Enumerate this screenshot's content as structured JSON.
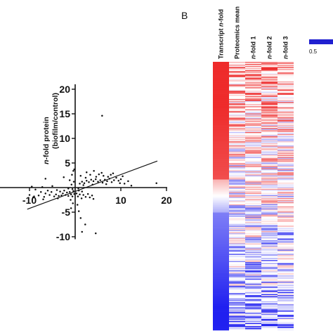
{
  "panel_b_label": "B",
  "legend": {
    "value_label": "0.5",
    "color": "#2020d0"
  },
  "colors": {
    "high": "#ee2b2b",
    "mid": "#ffffff",
    "low": "#2020f0",
    "points": "#111111"
  },
  "chart_data": [
    {
      "type": "scatter",
      "title": "",
      "xlabel": "",
      "ylabel_prefix": "n",
      "ylabel_line1": "-fold protein",
      "ylabel_line2": "(biofilm/control)",
      "xlim": [
        -10.5,
        20
      ],
      "ylim": [
        -10.5,
        21
      ],
      "x_ticks": [
        -10,
        10,
        20
      ],
      "y_ticks": [
        -10,
        -5,
        5,
        10,
        15,
        20
      ],
      "x_tick_labels": [
        "-10",
        "10",
        "20"
      ],
      "y_tick_labels": [
        "-10",
        "-5",
        "5",
        "10",
        "15",
        "20"
      ],
      "regression_line": {
        "x": [
          -10.5,
          18
        ],
        "y": [
          -4.4,
          5.4
        ]
      },
      "points": [
        [
          -10,
          -1.5
        ],
        [
          -9.5,
          0.2
        ],
        [
          -9,
          -1.8
        ],
        [
          -8.7,
          -0.4
        ],
        [
          -8,
          -1.6
        ],
        [
          -7.5,
          -0.9
        ],
        [
          -7.2,
          0.1
        ],
        [
          -6.8,
          -1.9
        ],
        [
          -6.5,
          -1.2
        ],
        [
          -6,
          -0.6
        ],
        [
          -5.6,
          -1.5
        ],
        [
          -5.2,
          -0.9
        ],
        [
          -5,
          0.3
        ],
        [
          -4.6,
          -1.8
        ],
        [
          -4.2,
          -1.4
        ],
        [
          -4,
          -0.5
        ],
        [
          -3.6,
          -1.7
        ],
        [
          -3.3,
          -0.8
        ],
        [
          -3,
          -1.6
        ],
        [
          -2.7,
          -1.2
        ],
        [
          -2.4,
          -0.6
        ],
        [
          -2.1,
          -1.5
        ],
        [
          -1.8,
          -1.0
        ],
        [
          -1.5,
          -1.7
        ],
        [
          -1.2,
          -0.9
        ],
        [
          -0.9,
          -1.4
        ],
        [
          -0.6,
          -1.8
        ],
        [
          -0.4,
          -0.7
        ],
        [
          -0.2,
          -1.3
        ],
        [
          -1,
          -2.5
        ],
        [
          -0.5,
          -3.2
        ],
        [
          -1.5,
          -0.2
        ],
        [
          -0.8,
          0.6
        ],
        [
          -0.3,
          1.2
        ],
        [
          -6.5,
          1.8
        ],
        [
          -2.5,
          2.1
        ],
        [
          -0.7,
          2.6
        ],
        [
          -0.4,
          3.4
        ],
        [
          -0.2,
          3.7
        ],
        [
          -1.2,
          1.5
        ],
        [
          -3.8,
          -2.2
        ],
        [
          -7,
          -2.4
        ],
        [
          -9.2,
          -2.0
        ],
        [
          -0.9,
          -4.2
        ],
        [
          -0.6,
          -0.3
        ],
        [
          0.3,
          -1.2
        ],
        [
          0.6,
          -1.8
        ],
        [
          1,
          -1.4
        ],
        [
          1.4,
          -2.2
        ],
        [
          1.8,
          -1.5
        ],
        [
          2.3,
          -1.9
        ],
        [
          2.8,
          -1.3
        ],
        [
          3.2,
          -2.0
        ],
        [
          3.7,
          -1.6
        ],
        [
          4,
          -2.3
        ],
        [
          0.8,
          -0.6
        ],
        [
          1.5,
          -0.8
        ],
        [
          0.5,
          -3.5
        ],
        [
          0.8,
          -4.8
        ],
        [
          1.2,
          -6.2
        ],
        [
          2.2,
          -7.5
        ],
        [
          1.5,
          -9.0
        ],
        [
          4.5,
          -9.3
        ],
        [
          1,
          0.8
        ],
        [
          1.5,
          1.2
        ],
        [
          2,
          0.9
        ],
        [
          2.5,
          1.4
        ],
        [
          3,
          1.1
        ],
        [
          3.5,
          1.6
        ],
        [
          4,
          1.3
        ],
        [
          4.5,
          1.7
        ],
        [
          5,
          1.2
        ],
        [
          5.5,
          1.5
        ],
        [
          6,
          1.0
        ],
        [
          6.5,
          1.6
        ],
        [
          7,
          1.3
        ],
        [
          7.5,
          1.8
        ],
        [
          8,
          1.1
        ],
        [
          8.5,
          1.5
        ],
        [
          9,
          2.0
        ],
        [
          9.5,
          1.4
        ],
        [
          10,
          1.7
        ],
        [
          1.2,
          2.4
        ],
        [
          2.3,
          2.0
        ],
        [
          3.3,
          2.6
        ],
        [
          4.6,
          2.2
        ],
        [
          6.2,
          2.4
        ],
        [
          7.8,
          2.6
        ],
        [
          2.5,
          3.1
        ],
        [
          4.1,
          3.4
        ],
        [
          5.8,
          3.0
        ],
        [
          8.3,
          2.9
        ],
        [
          1.8,
          0.5
        ],
        [
          3.8,
          0.6
        ],
        [
          6.8,
          0.7
        ],
        [
          9.8,
          0.9
        ],
        [
          5.9,
          14.6
        ],
        [
          10.8,
          0.8
        ],
        [
          11.6,
          1.3
        ],
        [
          12.3,
          0.4
        ],
        [
          17.8,
          0.9
        ],
        [
          0.7,
          -0.2
        ],
        [
          5.2,
          2.7
        ],
        [
          7.2,
          2.2
        ],
        [
          10.4,
          2.3
        ]
      ]
    },
    {
      "type": "heatmap",
      "columns": [
        "Transcript n-fold",
        "Proteomics mean",
        "n-fold 1",
        "n-fold 2",
        "n-fold 3"
      ],
      "column_labels": [
        {
          "prefix": "Transcript ",
          "italic": "n",
          "suffix": "-fold"
        },
        {
          "prefix": "Proteomics mean",
          "italic": "",
          "suffix": ""
        },
        {
          "prefix": "",
          "italic": "n",
          "suffix": "-fold 1"
        },
        {
          "prefix": "",
          "italic": "n",
          "suffix": "-fold 2"
        },
        {
          "prefix": "",
          "italic": "n",
          "suffix": "-fold 3"
        }
      ],
      "rows": 260,
      "row_order": "sorted by Transcript n-fold, descending (red high to blue low)"
    }
  ]
}
